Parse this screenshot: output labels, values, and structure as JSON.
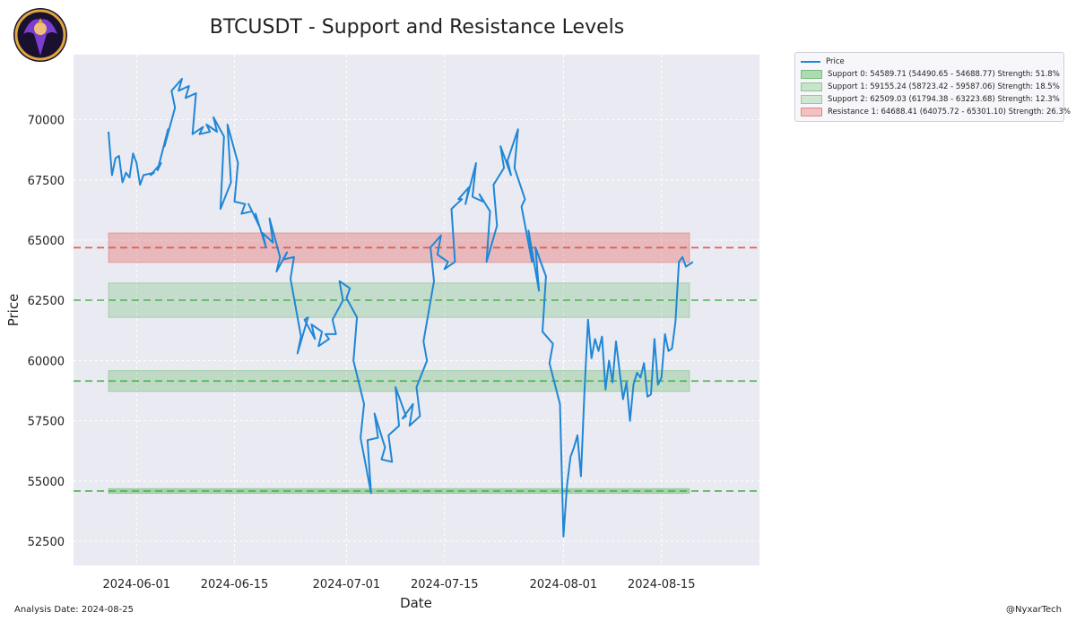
{
  "title": "BTCUSDT - Support and Resistance Levels",
  "footer": {
    "analysis_date": "Analysis Date: 2024-08-25",
    "handle": "@NyxarTech"
  },
  "colors": {
    "price": "#1f87d6",
    "support": "#4caf50",
    "resistance": "#e0483e",
    "plot_bg": "#eaeaf2",
    "grid": "#ffffff"
  },
  "chart_data": {
    "type": "line",
    "xlabel": "Date",
    "ylabel": "Price",
    "xlim": [
      "2024-05-23",
      "2024-08-29"
    ],
    "ylim": [
      51500,
      72700
    ],
    "xticks": [
      "2024-06-01",
      "2024-06-15",
      "2024-07-01",
      "2024-07-15",
      "2024-08-01",
      "2024-08-15"
    ],
    "yticks": [
      52500,
      55000,
      57500,
      60000,
      62500,
      65000,
      67500,
      70000
    ],
    "grid": true,
    "legend_position": "outside-top-right",
    "series": [
      {
        "name": "Price",
        "points": [
          [
            "2024-05-28",
            69500
          ],
          [
            "2024-05-28",
            67700
          ],
          [
            "2024-05-29",
            68400
          ],
          [
            "2024-05-29",
            68500
          ],
          [
            "2024-05-30",
            67400
          ],
          [
            "2024-05-30",
            67800
          ],
          [
            "2024-05-31",
            67600
          ],
          [
            "2024-05-31",
            68600
          ],
          [
            "2024-06-01",
            68200
          ],
          [
            "2024-06-01",
            67300
          ],
          [
            "2024-06-02",
            67700
          ],
          [
            "2024-06-03",
            67800
          ],
          [
            "2024-06-03",
            67700
          ],
          [
            "2024-06-04",
            68200
          ],
          [
            "2024-06-04",
            67900
          ],
          [
            "2024-06-05",
            69600
          ],
          [
            "2024-06-05",
            68900
          ],
          [
            "2024-06-06",
            70500
          ],
          [
            "2024-06-06",
            71200
          ],
          [
            "2024-06-07",
            71700
          ],
          [
            "2024-06-07",
            71200
          ],
          [
            "2024-06-08",
            71400
          ],
          [
            "2024-06-08",
            70900
          ],
          [
            "2024-06-09",
            71100
          ],
          [
            "2024-06-09",
            69400
          ],
          [
            "2024-06-10",
            69700
          ],
          [
            "2024-06-10",
            69400
          ],
          [
            "2024-06-11",
            69500
          ],
          [
            "2024-06-11",
            69800
          ],
          [
            "2024-06-12",
            69500
          ],
          [
            "2024-06-12",
            70100
          ],
          [
            "2024-06-13",
            69300
          ],
          [
            "2024-06-13",
            66300
          ],
          [
            "2024-06-14",
            67400
          ],
          [
            "2024-06-14",
            69800
          ],
          [
            "2024-06-15",
            68200
          ],
          [
            "2024-06-15",
            66600
          ],
          [
            "2024-06-16",
            66500
          ],
          [
            "2024-06-16",
            66100
          ],
          [
            "2024-06-17",
            66200
          ],
          [
            "2024-06-17",
            66500
          ],
          [
            "2024-06-18",
            65600
          ],
          [
            "2024-06-18",
            66100
          ],
          [
            "2024-06-19",
            64700
          ],
          [
            "2024-06-19",
            65300
          ],
          [
            "2024-06-20",
            64900
          ],
          [
            "2024-06-20",
            65900
          ],
          [
            "2024-06-21",
            64300
          ],
          [
            "2024-06-21",
            63700
          ],
          [
            "2024-06-22",
            64500
          ],
          [
            "2024-06-22",
            64200
          ],
          [
            "2024-06-23",
            64300
          ],
          [
            "2024-06-23",
            63400
          ],
          [
            "2024-06-24",
            61000
          ],
          [
            "2024-06-24",
            60300
          ],
          [
            "2024-06-25",
            61800
          ],
          [
            "2024-06-25",
            61700
          ],
          [
            "2024-06-26",
            60900
          ],
          [
            "2024-06-26",
            61500
          ],
          [
            "2024-06-27",
            61200
          ],
          [
            "2024-06-27",
            60600
          ],
          [
            "2024-06-28",
            60900
          ],
          [
            "2024-06-28",
            61100
          ],
          [
            "2024-06-29",
            61100
          ],
          [
            "2024-06-29",
            61700
          ],
          [
            "2024-06-30",
            62500
          ],
          [
            "2024-06-30",
            63300
          ],
          [
            "2024-07-01",
            63000
          ],
          [
            "2024-07-01",
            62600
          ],
          [
            "2024-07-02",
            61800
          ],
          [
            "2024-07-02",
            60000
          ],
          [
            "2024-07-03",
            58200
          ],
          [
            "2024-07-03",
            56800
          ],
          [
            "2024-07-04",
            54500
          ],
          [
            "2024-07-04",
            56700
          ],
          [
            "2024-07-05",
            56800
          ],
          [
            "2024-07-05",
            57800
          ],
          [
            "2024-07-06",
            56400
          ],
          [
            "2024-07-06",
            55900
          ],
          [
            "2024-07-07",
            55800
          ],
          [
            "2024-07-07",
            56900
          ],
          [
            "2024-07-08",
            57300
          ],
          [
            "2024-07-08",
            58900
          ],
          [
            "2024-07-09",
            57700
          ],
          [
            "2024-07-09",
            57600
          ],
          [
            "2024-07-10",
            58200
          ],
          [
            "2024-07-10",
            57300
          ],
          [
            "2024-07-11",
            57700
          ],
          [
            "2024-07-11",
            58900
          ],
          [
            "2024-07-12",
            60000
          ],
          [
            "2024-07-12",
            60800
          ],
          [
            "2024-07-13",
            63300
          ],
          [
            "2024-07-13",
            64700
          ],
          [
            "2024-07-14",
            65200
          ],
          [
            "2024-07-14",
            64400
          ],
          [
            "2024-07-15",
            64100
          ],
          [
            "2024-07-15",
            63800
          ],
          [
            "2024-07-16",
            64100
          ],
          [
            "2024-07-16",
            66300
          ],
          [
            "2024-07-17",
            66700
          ],
          [
            "2024-07-17",
            66700
          ],
          [
            "2024-07-18",
            67200
          ],
          [
            "2024-07-18",
            66500
          ],
          [
            "2024-07-19",
            68200
          ],
          [
            "2024-07-19",
            66800
          ],
          [
            "2024-07-20",
            66600
          ],
          [
            "2024-07-20",
            66900
          ],
          [
            "2024-07-21",
            66200
          ],
          [
            "2024-07-21",
            64100
          ],
          [
            "2024-07-22",
            65600
          ],
          [
            "2024-07-22",
            67300
          ],
          [
            "2024-07-23",
            68000
          ],
          [
            "2024-07-23",
            68900
          ],
          [
            "2024-07-24",
            67700
          ],
          [
            "2024-07-24",
            68300
          ],
          [
            "2024-07-25",
            69600
          ],
          [
            "2024-07-25",
            68000
          ],
          [
            "2024-07-26",
            66700
          ],
          [
            "2024-07-26",
            66400
          ],
          [
            "2024-07-27",
            64100
          ],
          [
            "2024-07-27",
            65400
          ],
          [
            "2024-07-28",
            62900
          ],
          [
            "2024-07-28",
            64700
          ],
          [
            "2024-07-29",
            63500
          ],
          [
            "2024-07-29",
            61200
          ],
          [
            "2024-07-30",
            60700
          ],
          [
            "2024-07-30",
            59900
          ],
          [
            "2024-07-31",
            58200
          ],
          [
            "2024-08-01",
            52700
          ],
          [
            "2024-08-01",
            54800
          ],
          [
            "2024-08-02",
            56000
          ],
          [
            "2024-08-02",
            56400
          ],
          [
            "2024-08-03",
            56900
          ],
          [
            "2024-08-03",
            55200
          ],
          [
            "2024-08-04",
            58700
          ],
          [
            "2024-08-04",
            61700
          ],
          [
            "2024-08-05",
            60100
          ],
          [
            "2024-08-05",
            60900
          ],
          [
            "2024-08-06",
            60400
          ],
          [
            "2024-08-06",
            61000
          ],
          [
            "2024-08-07",
            58800
          ],
          [
            "2024-08-07",
            60000
          ],
          [
            "2024-08-08",
            59100
          ],
          [
            "2024-08-08",
            60800
          ],
          [
            "2024-08-09",
            59600
          ],
          [
            "2024-08-09",
            58400
          ],
          [
            "2024-08-10",
            59100
          ],
          [
            "2024-08-10",
            57500
          ],
          [
            "2024-08-11",
            59000
          ],
          [
            "2024-08-11",
            59500
          ],
          [
            "2024-08-12",
            59300
          ],
          [
            "2024-08-12",
            59900
          ],
          [
            "2024-08-13",
            58500
          ],
          [
            "2024-08-13",
            58600
          ],
          [
            "2024-08-14",
            60900
          ],
          [
            "2024-08-14",
            59000
          ],
          [
            "2024-08-15",
            59300
          ],
          [
            "2024-08-15",
            61100
          ],
          [
            "2024-08-16",
            60400
          ],
          [
            "2024-08-16",
            60500
          ],
          [
            "2024-08-17",
            61600
          ],
          [
            "2024-08-17",
            64100
          ],
          [
            "2024-08-18",
            64300
          ],
          [
            "2024-08-18",
            63900
          ],
          [
            "2024-08-19",
            64000
          ],
          [
            "2024-08-19",
            64100
          ]
        ]
      }
    ],
    "bands": [
      {
        "label": "Support 0: 54589.71 (54490.65 - 54688.77) Strength: 51.8%",
        "kind": "support",
        "level": 54589.71,
        "low": 54490.65,
        "high": 54688.77,
        "opacity": 0.42
      },
      {
        "label": "Support 1: 59155.24 (58723.42 - 59587.06) Strength: 18.5%",
        "kind": "support",
        "level": 59155.24,
        "low": 58723.42,
        "high": 59587.06,
        "opacity": 0.28
      },
      {
        "label": "Support 2: 62509.03 (61794.38 - 63223.68) Strength: 12.3%",
        "kind": "support",
        "level": 62509.03,
        "low": 61794.38,
        "high": 63223.68,
        "opacity": 0.24
      },
      {
        "label": "Resistance 1: 64688.41 (64075.72 - 65301.10) Strength: 26.3%",
        "kind": "resistance",
        "level": 64688.41,
        "low": 64075.72,
        "high": 65301.1,
        "opacity": 0.3
      }
    ],
    "band_date_range": [
      "2024-05-28",
      "2024-08-19"
    ]
  }
}
